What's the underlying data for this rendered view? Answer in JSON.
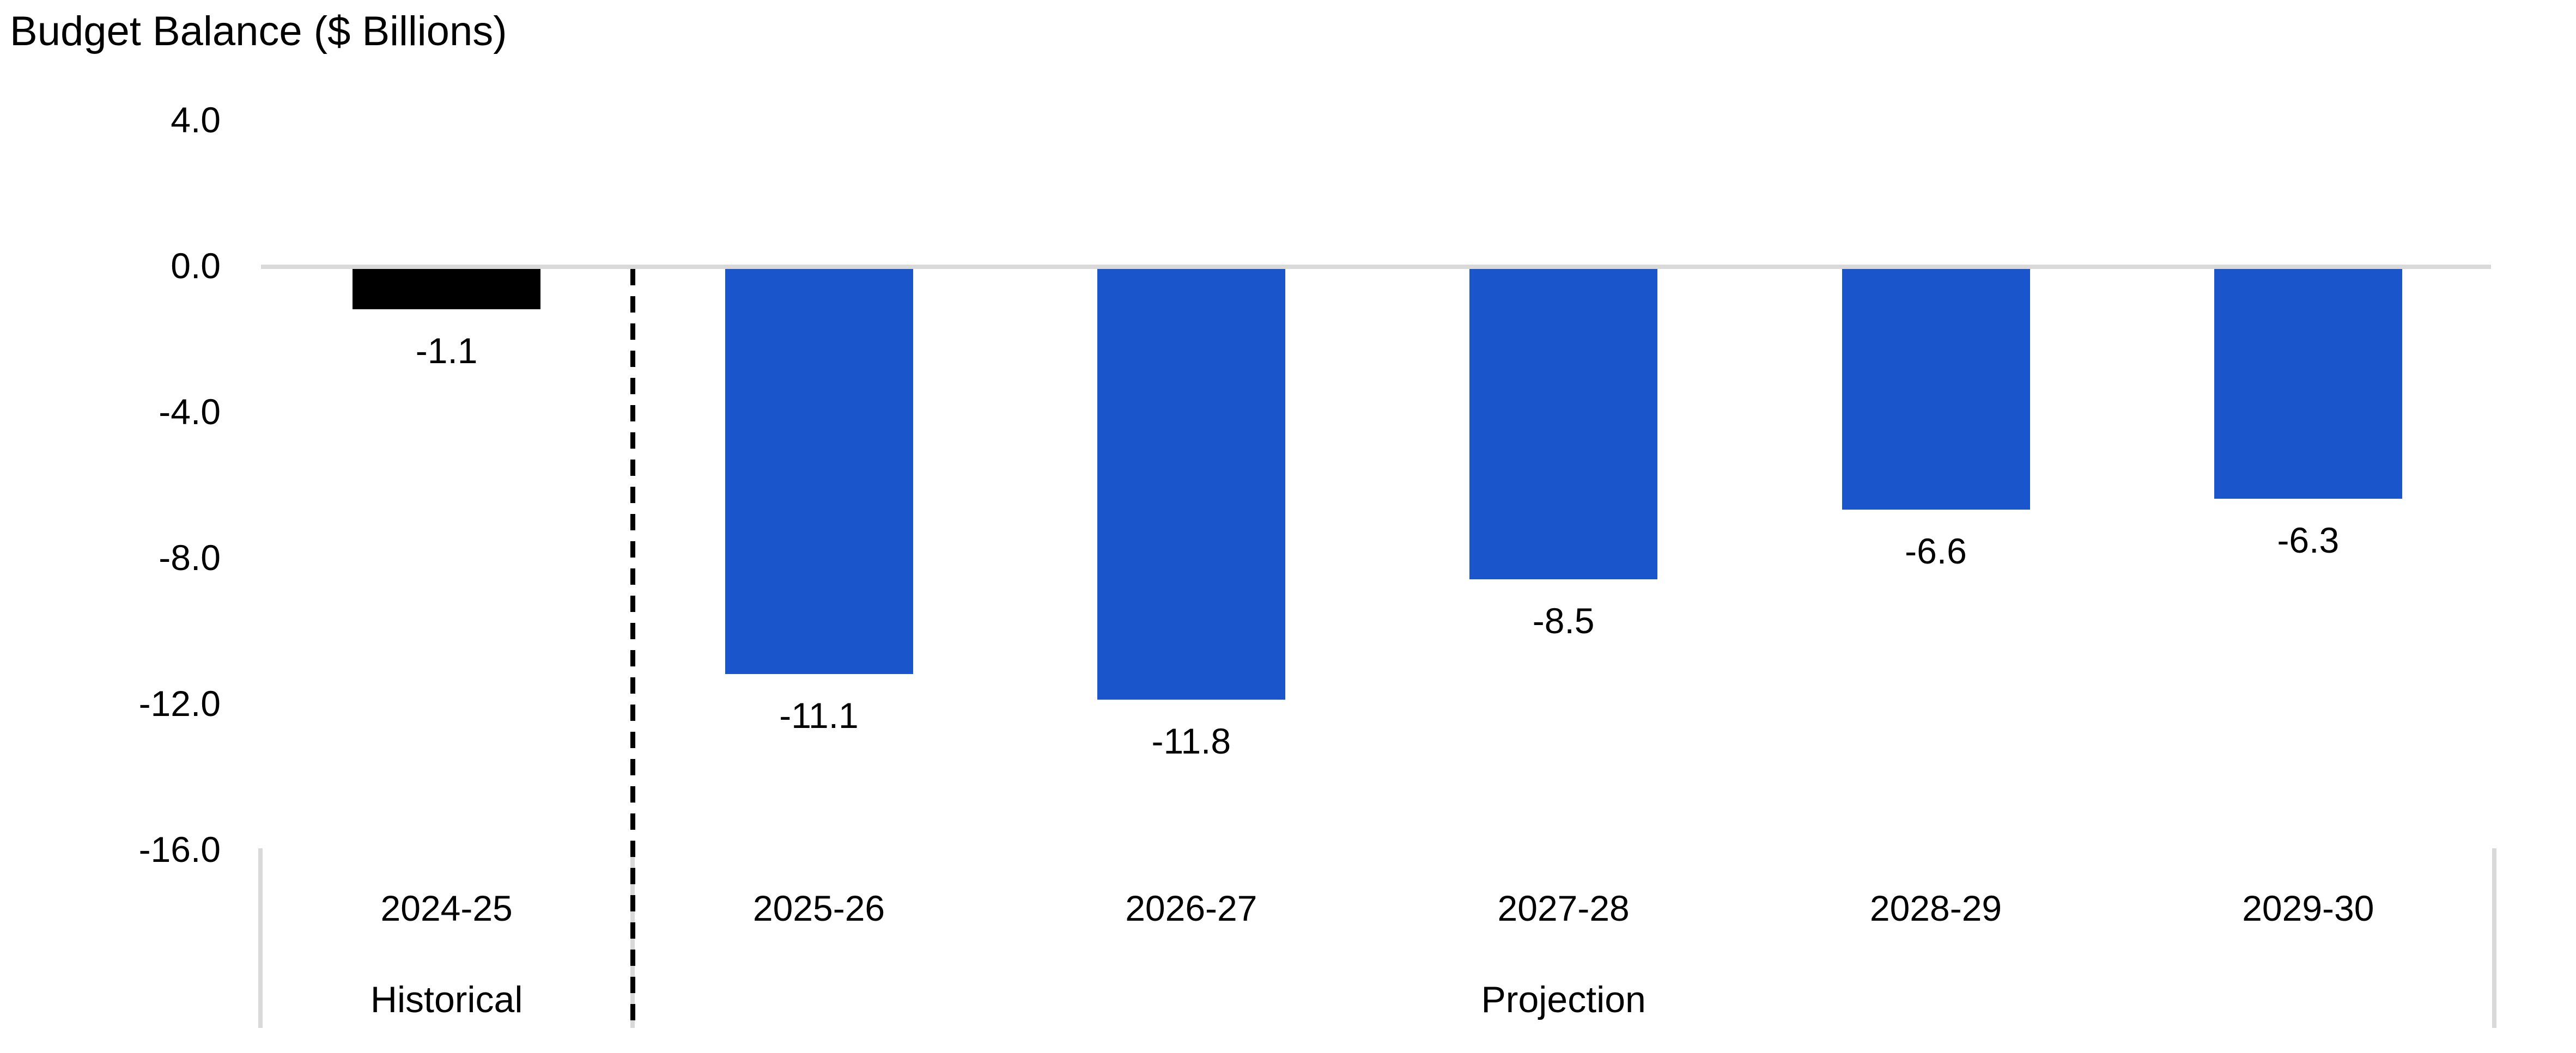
{
  "title": "Budget Balance ($ Billions)",
  "chart_data": {
    "type": "bar",
    "title": "Budget Balance ($ Billions)",
    "ylabel": "Budget Balance ($ Billions)",
    "xlabel": "",
    "categories": [
      "2024-25",
      "2025-26",
      "2026-27",
      "2027-28",
      "2028-29",
      "2029-30"
    ],
    "values": [
      -1.1,
      -11.1,
      -11.8,
      -8.5,
      -6.6,
      -6.3
    ],
    "data_labels": [
      "-1.1",
      "-11.1",
      "-11.8",
      "-8.5",
      "-6.6",
      "-6.3"
    ],
    "groups": [
      "Historical",
      "Projection",
      "Projection",
      "Projection",
      "Projection",
      "Projection"
    ],
    "group_labels": [
      {
        "label": "Historical",
        "span": [
          "2024-25",
          "2024-25"
        ]
      },
      {
        "label": "Projection",
        "span": [
          "2025-26",
          "2029-30"
        ]
      }
    ],
    "yticks": [
      {
        "value": 4,
        "label": "4.0"
      },
      {
        "value": 0,
        "label": "0.0"
      },
      {
        "value": -4,
        "label": "-4.0"
      },
      {
        "value": -8,
        "label": "-8.0"
      },
      {
        "value": -12,
        "label": "-12.0"
      },
      {
        "value": -16,
        "label": "-16.0"
      }
    ],
    "ylim": [
      -16,
      4
    ],
    "grid": "zero-line-only",
    "legend": "none",
    "divider": {
      "style": "dashed",
      "between": [
        "2024-25",
        "2025-26"
      ]
    },
    "colors": {
      "historical": "#000000",
      "projection": "#1a55cb",
      "gridline": "#d9d9d9",
      "separator": "#d9d9d9",
      "divider": "#000000",
      "text": "#000000",
      "background": "#ffffff"
    }
  }
}
